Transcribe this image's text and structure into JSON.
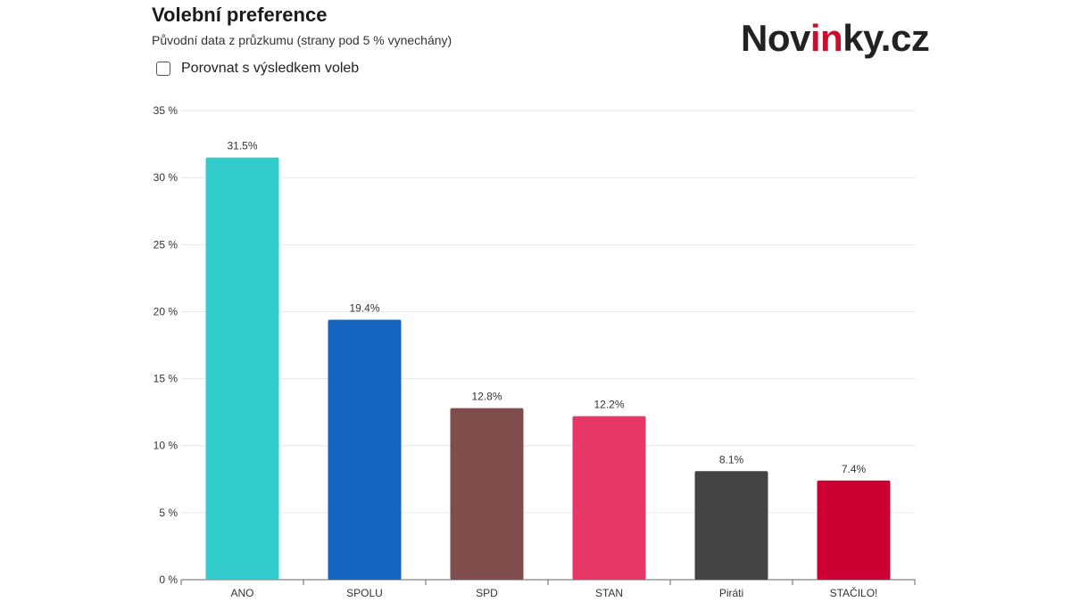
{
  "header": {
    "title": "Volební preference",
    "subtitle": "Původní data z průzkumu (strany pod 5 % vynechány)",
    "logo_main": "Nov",
    "logo_accent": "in",
    "logo_end": "ky.cz"
  },
  "controls": {
    "compare_label": "Porovnat s výsledkem voleb",
    "compare_checked": false
  },
  "chart_data": {
    "type": "bar",
    "title": "Volební preference",
    "subtitle": "Původní data z průzkumu (strany pod 5 % vynechány)",
    "categories": [
      "ANO",
      "SPOLU",
      "SPD",
      "STAN",
      "Piráti",
      "STAČILO!"
    ],
    "values": [
      31.5,
      19.4,
      12.8,
      12.2,
      8.1,
      7.4
    ],
    "value_labels": [
      "31.5%",
      "19.4%",
      "12.8%",
      "12.2%",
      "8.1%",
      "7.4%"
    ],
    "colors": [
      "#33cccc",
      "#1565c0",
      "#804d4d",
      "#e63766",
      "#444444",
      "#cc0033"
    ],
    "ylim": [
      0,
      35
    ],
    "yticks": [
      0,
      5,
      10,
      15,
      20,
      25,
      30,
      35
    ],
    "ytick_labels": [
      "0 %",
      "5 %",
      "10 %",
      "15 %",
      "20 %",
      "25 %",
      "30 %",
      "35 %"
    ],
    "xlabel": "",
    "ylabel": "",
    "grid": true,
    "legend": "none"
  }
}
